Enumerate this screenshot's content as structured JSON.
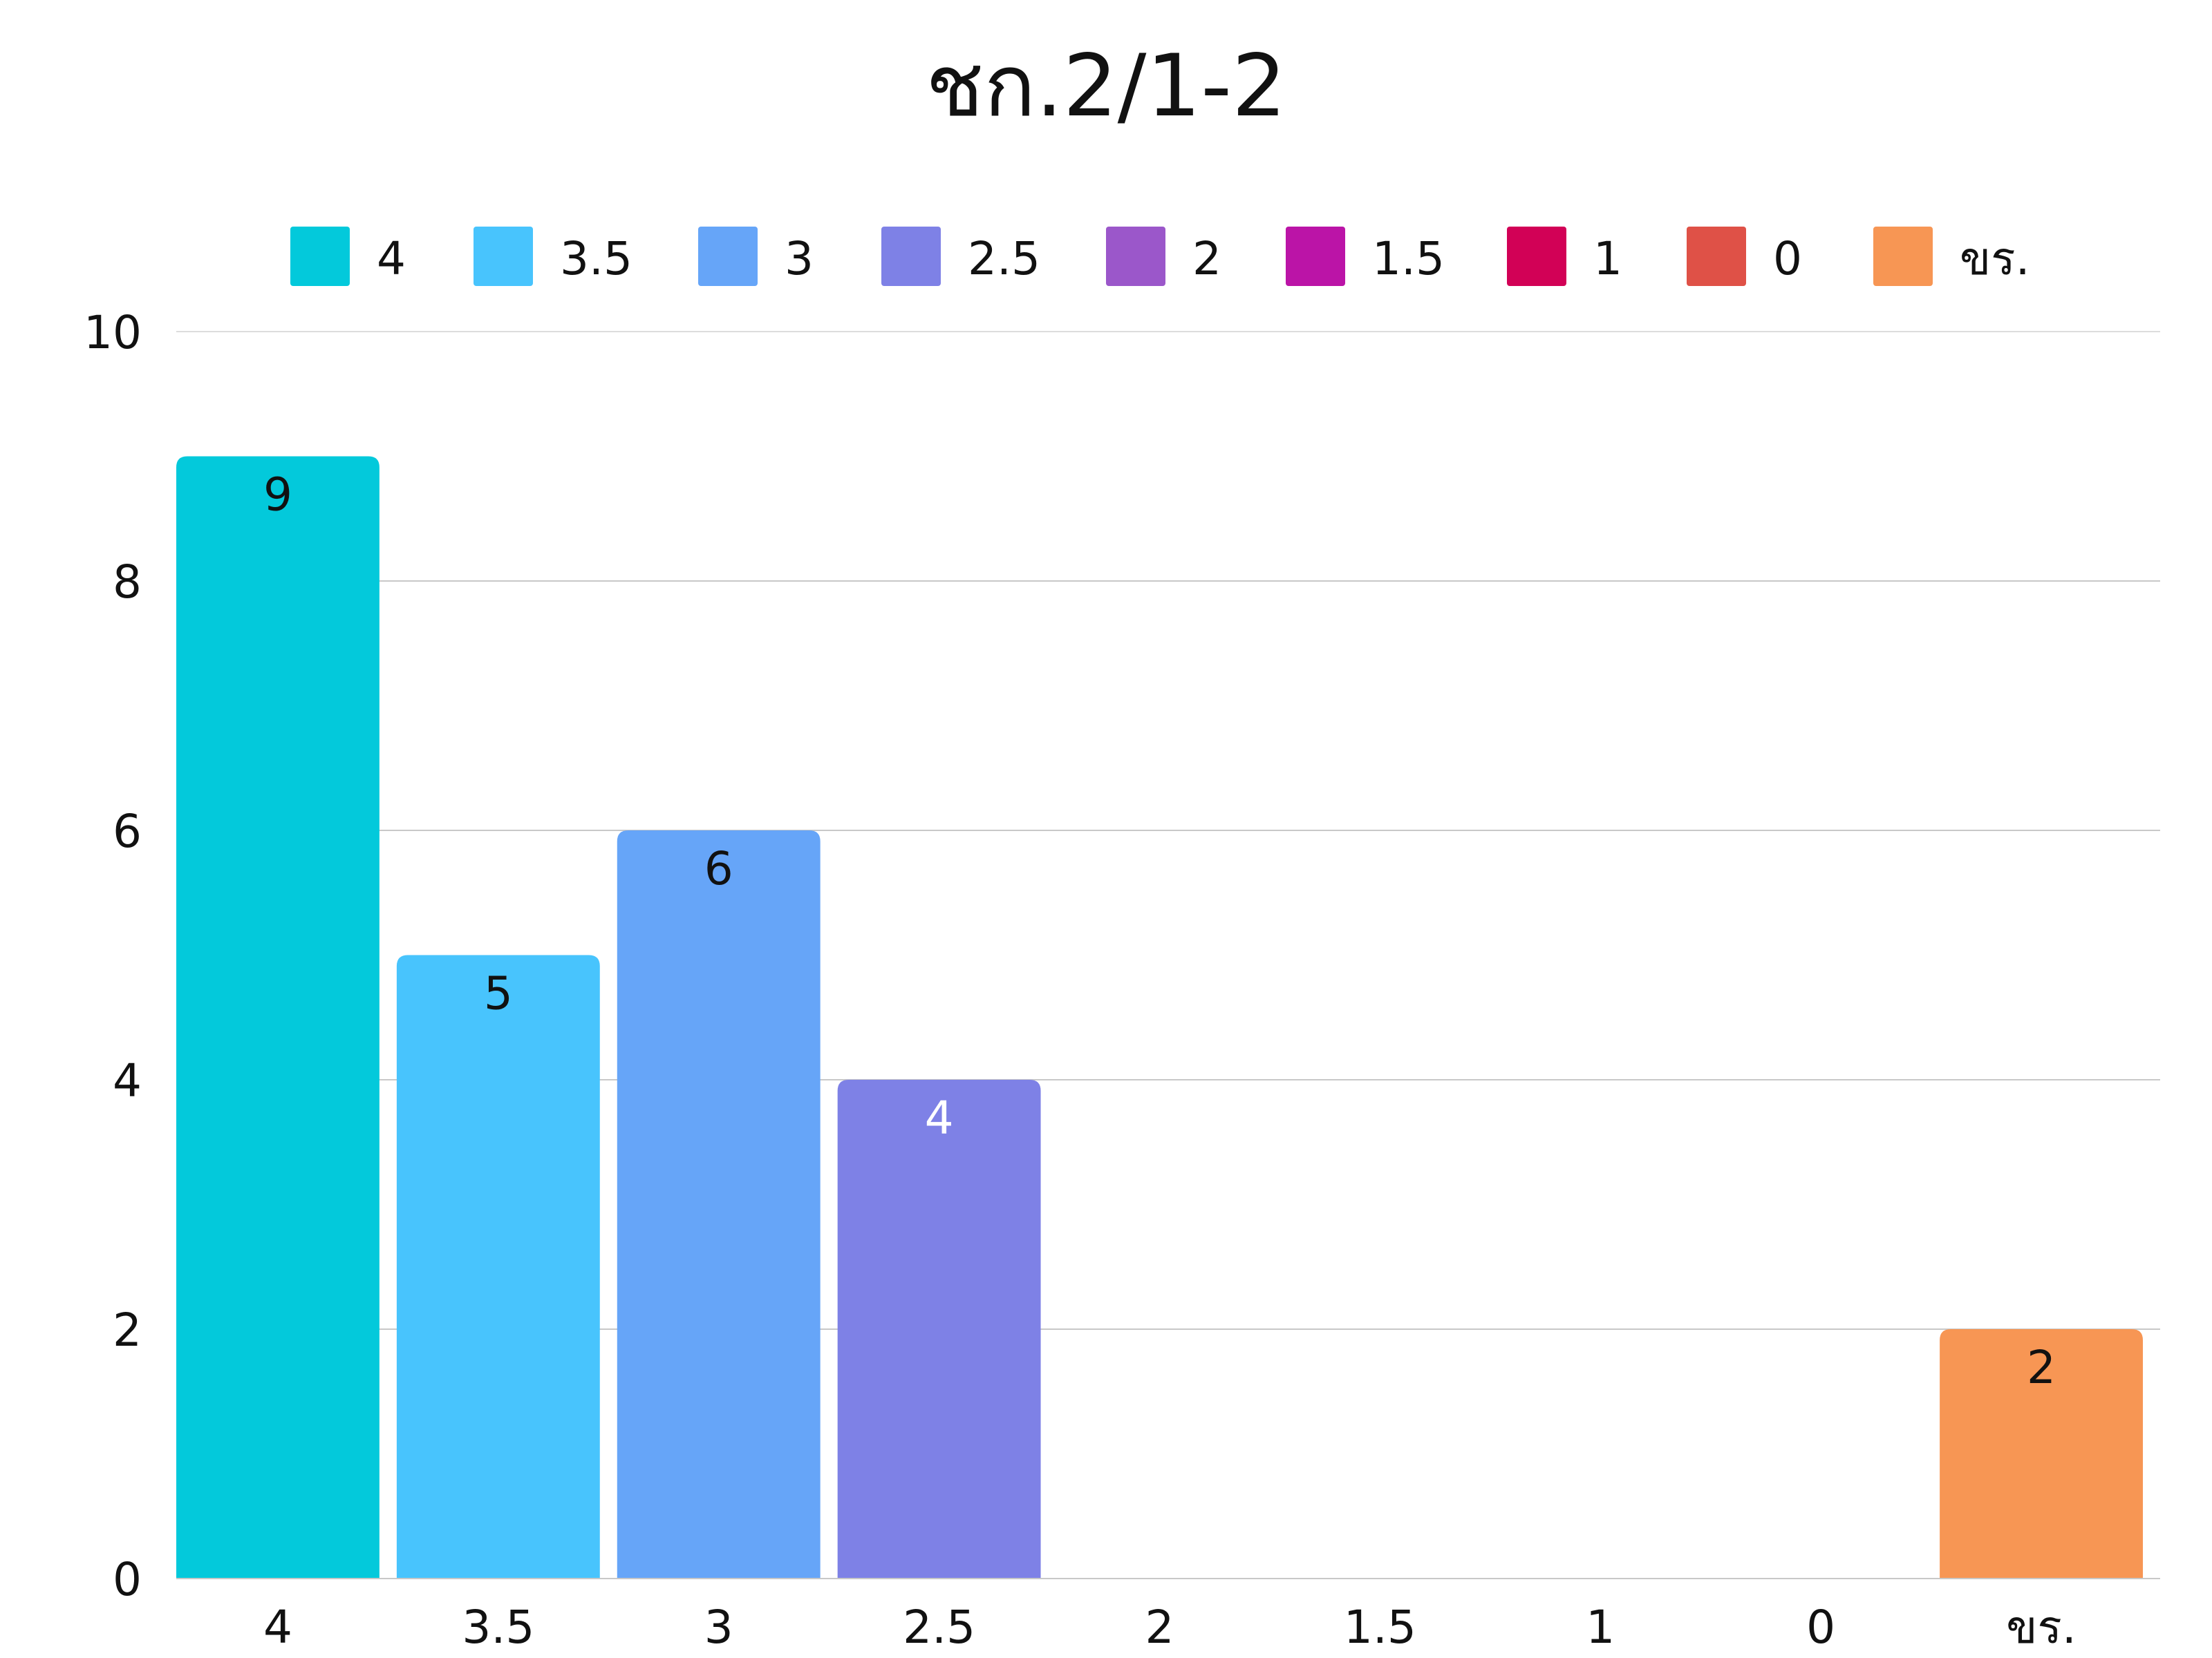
{
  "chart_data": {
    "type": "bar",
    "title": "ชก.2/1-2",
    "xlabel": "",
    "ylabel": "",
    "categories": [
      "4",
      "3.5",
      "3",
      "2.5",
      "2",
      "1.5",
      "1",
      "0",
      "ขร."
    ],
    "values": [
      9,
      5,
      6,
      4,
      0,
      0,
      0,
      0,
      2
    ],
    "data_labels": [
      "9",
      "5",
      "6",
      "4",
      "",
      "",
      "",
      "",
      "2"
    ],
    "data_label_colors": [
      "#111111",
      "#111111",
      "#111111",
      "#ffffff",
      "#111111",
      "#111111",
      "#111111",
      "#111111",
      "#111111"
    ],
    "colors": [
      "#03c9db",
      "#48c4fd",
      "#66a5f8",
      "#7e81e6",
      "#9b57ca",
      "#bb14a7",
      "#d20156",
      "#df5147",
      "#f79654"
    ],
    "legend": {
      "placement": "top",
      "entries": [
        "4",
        "3.5",
        "3",
        "2.5",
        "2",
        "1.5",
        "1",
        "0",
        "ขร."
      ]
    },
    "ylim": [
      0,
      10
    ],
    "yticks": [
      "0",
      "2",
      "4",
      "6",
      "8",
      "10"
    ],
    "grid": true
  }
}
